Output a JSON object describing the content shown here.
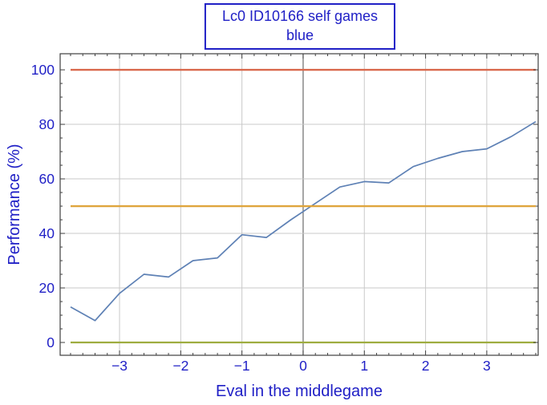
{
  "title_box": {
    "line1": "Lc0 ID10166 self games",
    "line2": "blue"
  },
  "axes": {
    "ylabel": "Performance (%)",
    "xlabel": "Eval in the middlegame"
  },
  "colors": {
    "text_blue": "#2020c6",
    "box_border": "#2020c6",
    "frame": "#404040",
    "tick": "#404040",
    "grid": "#c9c9c9",
    "zero_axis": "#6a6a6a",
    "series_blue": "#5e81b5",
    "ref_100": "#d9684c",
    "ref_50": "#dfa53d",
    "ref_0": "#9ead40"
  },
  "chart_data": {
    "type": "line",
    "title": "Lc0 ID10166 self games blue",
    "xlabel": "Eval in the middlegame",
    "ylabel": "Performance (%)",
    "xlim": [
      -3.97,
      3.84
    ],
    "ylim": [
      -4.7,
      105.9
    ],
    "xticks": [
      -3,
      -2,
      -1,
      0,
      1,
      2,
      3
    ],
    "xtick_labels": [
      "−3",
      "−2",
      "−1",
      "0",
      "1",
      "2",
      "3"
    ],
    "xminor_step": 0.2,
    "xminor_range": [
      -3.8,
      3.8
    ],
    "yticks": [
      0,
      20,
      40,
      60,
      80,
      100
    ],
    "ytick_labels": [
      "0",
      "20",
      "40",
      "60",
      "80",
      "100"
    ],
    "yminor_step": 5,
    "ygrid_at": [
      20,
      40,
      60,
      80
    ],
    "grid": true,
    "legend_position": "none",
    "series": [
      {
        "name": "performance",
        "kind": "line",
        "color": "#5e81b5",
        "x": [
          -3.8,
          -3.4,
          -3.0,
          -2.6,
          -2.2,
          -1.8,
          -1.4,
          -1.0,
          -0.6,
          -0.2,
          0.2,
          0.6,
          1.0,
          1.4,
          1.8,
          2.2,
          2.6,
          3.0,
          3.4,
          3.8
        ],
        "y": [
          13,
          8,
          18,
          25,
          24,
          30,
          31,
          39.5,
          38.5,
          45,
          51,
          57,
          59,
          58.5,
          64.5,
          67.5,
          70,
          71,
          75.5,
          81
        ]
      },
      {
        "name": "ref-100",
        "kind": "hline",
        "value": 100,
        "color": "#d9684c",
        "x_range": [
          -3.8,
          3.8
        ]
      },
      {
        "name": "ref-50",
        "kind": "hline",
        "value": 50,
        "color": "#dfa53d",
        "x_range": [
          -3.8,
          3.8
        ]
      },
      {
        "name": "ref-0",
        "kind": "hline",
        "value": 0,
        "color": "#9ead40",
        "x_range": [
          -3.8,
          3.8
        ]
      }
    ]
  }
}
